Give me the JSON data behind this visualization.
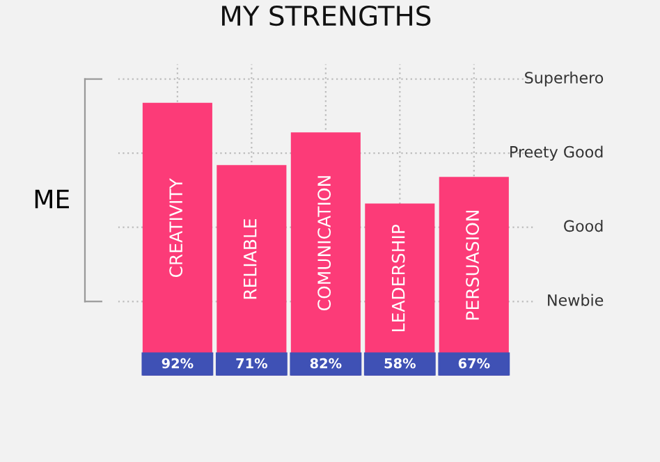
{
  "chart_data": {
    "type": "bar",
    "title": "MY STRENGTHS",
    "ylabel": "ME",
    "categories": [
      "CREATIVITY",
      "RELIABLE",
      "COMUNICATION",
      "LEADERSHIP",
      "PERSUASION"
    ],
    "values": [
      92,
      71,
      82,
      58,
      67
    ],
    "value_labels": [
      "92%",
      "71%",
      "82%",
      "58%",
      "67%"
    ],
    "color": "#fc3b78",
    "ylim": [
      0,
      105
    ],
    "ref_lines": [
      {
        "axis": "y",
        "value": 25,
        "label": "Newbie",
        "color": "#bbbbbb",
        "line_style": "dotted"
      },
      {
        "axis": "y",
        "value": 50,
        "label": "Good",
        "color": "#bbbbbb",
        "line_style": "dotted"
      },
      {
        "axis": "y",
        "value": 75,
        "label": "Preety Good",
        "color": "#bbbbbb",
        "line_style": "dotted"
      },
      {
        "axis": "y",
        "value": 100,
        "label": "Superhero",
        "color": "#bbbbbb",
        "line_style": "dotted"
      }
    ],
    "grid": "x"
  }
}
